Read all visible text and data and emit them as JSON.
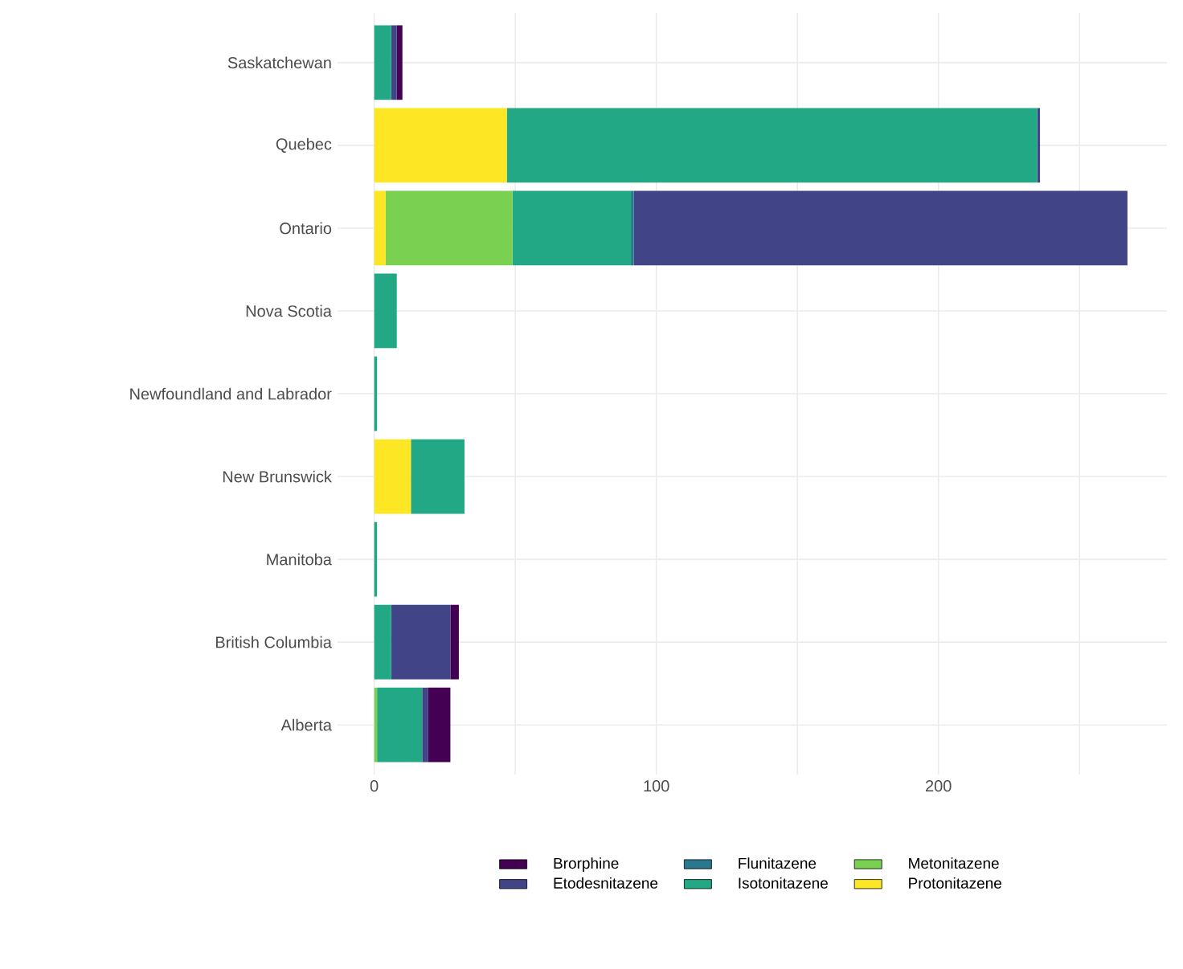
{
  "chart_data": {
    "type": "bar",
    "orientation": "horizontal",
    "stacked": true,
    "categories": [
      "Saskatchewan",
      "Quebec",
      "Ontario",
      "Nova Scotia",
      "Newfoundland and Labrador",
      "New Brunswick",
      "Manitoba",
      "British Columbia",
      "Alberta"
    ],
    "series": [
      {
        "name": "Protonitazene",
        "color": "#fde725",
        "values": [
          0,
          47,
          4,
          0,
          0,
          13,
          0,
          0,
          0
        ]
      },
      {
        "name": "Metonitazene",
        "color": "#7ad151",
        "values": [
          0,
          0,
          45,
          0,
          0,
          0,
          0,
          0,
          1
        ]
      },
      {
        "name": "Isotonitazene",
        "color": "#22a884",
        "values": [
          6,
          188,
          42,
          8,
          1,
          19,
          1,
          6,
          16
        ]
      },
      {
        "name": "Flunitazene",
        "color": "#2a788e",
        "values": [
          0,
          0,
          1,
          0,
          0,
          0,
          0,
          0,
          0
        ]
      },
      {
        "name": "Etodesnitazene",
        "color": "#414487",
        "values": [
          2,
          1,
          175,
          0,
          0,
          0,
          0,
          21,
          2
        ]
      },
      {
        "name": "Brorphine",
        "color": "#440154",
        "values": [
          2,
          0,
          0,
          0,
          0,
          0,
          0,
          3,
          8
        ]
      }
    ],
    "xlim": [
      -13,
      281
    ],
    "xticks": [
      0,
      {
        "value": 50,
        "label": null
      },
      100,
      {
        "value": 150,
        "label": null
      },
      200,
      {
        "value": 250,
        "label": null
      }
    ],
    "grid": true,
    "legend": "bottom"
  }
}
